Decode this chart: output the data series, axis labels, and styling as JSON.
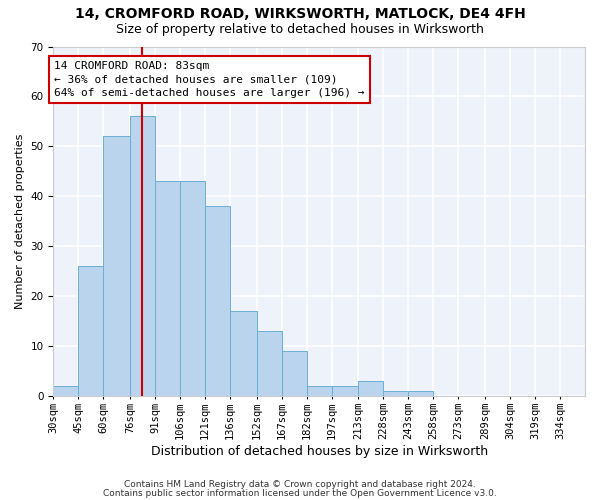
{
  "title": "14, CROMFORD ROAD, WIRKSWORTH, MATLOCK, DE4 4FH",
  "subtitle": "Size of property relative to detached houses in Wirksworth",
  "xlabel": "Distribution of detached houses by size in Wirksworth",
  "ylabel": "Number of detached properties",
  "bar_labels": [
    "30sqm",
    "45sqm",
    "60sqm",
    "76sqm",
    "91sqm",
    "106sqm",
    "121sqm",
    "136sqm",
    "152sqm",
    "167sqm",
    "182sqm",
    "197sqm",
    "213sqm",
    "228sqm",
    "243sqm",
    "258sqm",
    "273sqm",
    "289sqm",
    "304sqm",
    "319sqm",
    "334sqm"
  ],
  "bar_values": [
    2,
    26,
    52,
    56,
    43,
    43,
    38,
    17,
    13,
    9,
    2,
    2,
    3,
    1,
    1,
    0,
    0,
    0,
    0,
    0,
    0
  ],
  "bar_color": "#bad4ed",
  "bar_edge_color": "#6baed6",
  "bar_edge_width": 0.7,
  "background_color": "#eef2fb",
  "grid_color": "#ffffff",
  "annotation_line1": "14 CROMFORD ROAD: 83sqm",
  "annotation_line2": "← 36% of detached houses are smaller (109)",
  "annotation_line3": "64% of semi-detached houses are larger (196) →",
  "vline_color": "#cc0000",
  "ylim": [
    0,
    70
  ],
  "yticks": [
    0,
    10,
    20,
    30,
    40,
    50,
    60,
    70
  ],
  "footer_line1": "Contains HM Land Registry data © Crown copyright and database right 2024.",
  "footer_line2": "Contains public sector information licensed under the Open Government Licence v3.0.",
  "title_fontsize": 10,
  "subtitle_fontsize": 9,
  "xlabel_fontsize": 9,
  "ylabel_fontsize": 8,
  "tick_fontsize": 7.5,
  "annotation_fontsize": 8,
  "footer_fontsize": 6.5,
  "bin_labels_sqm": [
    30,
    45,
    60,
    76,
    91,
    106,
    121,
    136,
    152,
    167,
    182,
    197,
    213,
    228,
    243,
    258,
    273,
    289,
    304,
    319,
    334
  ],
  "property_sqm": 83
}
